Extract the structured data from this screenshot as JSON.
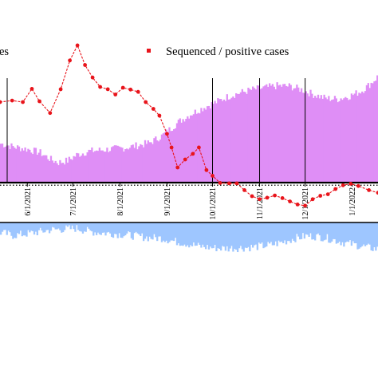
{
  "chart_data": {
    "type": "bar",
    "x_axis": {
      "tick_labels": [
        "6/1/2021",
        "7/1/2021",
        "8/1/2021",
        "9/1/2021",
        "10/1/2021",
        "11/1/2021",
        "12/1/2021",
        "1/1/2022"
      ],
      "tick_days": [
        0,
        30,
        61,
        92,
        122,
        153,
        183,
        214
      ],
      "range_days": [
        -18,
        231
      ]
    },
    "legend": [
      {
        "label": "es",
        "partial": true
      },
      {
        "label": "Sequenced / positive cases",
        "marker": "red-square-dot"
      }
    ],
    "series": [
      {
        "name": "Sequenced / positive cases",
        "kind": "line-with-markers",
        "color": "#e8141b",
        "points": [
          [
            -18,
            0.73
          ],
          [
            -10,
            0.734
          ],
          [
            -3,
            0.73
          ],
          [
            3,
            0.765
          ],
          [
            8,
            0.732
          ],
          [
            15,
            0.701
          ],
          [
            22,
            0.764
          ],
          [
            28,
            0.84
          ],
          [
            33,
            0.88
          ],
          [
            38,
            0.828
          ],
          [
            43,
            0.795
          ],
          [
            48,
            0.77
          ],
          [
            53,
            0.764
          ],
          [
            58,
            0.75
          ],
          [
            63,
            0.768
          ],
          [
            68,
            0.763
          ],
          [
            73,
            0.757
          ],
          [
            78,
            0.73
          ],
          [
            83,
            0.712
          ],
          [
            87,
            0.694
          ],
          [
            92,
            0.646
          ],
          [
            95,
            0.61
          ],
          [
            99,
            0.557
          ],
          [
            104,
            0.578
          ],
          [
            109,
            0.593
          ],
          [
            113,
            0.61
          ],
          [
            118,
            0.55
          ],
          [
            122,
            0.535
          ],
          [
            127,
            0.516
          ],
          [
            133,
            0.515
          ],
          [
            138,
            0.515
          ],
          [
            143,
            0.497
          ],
          [
            148,
            0.481
          ],
          [
            153,
            0.473
          ],
          [
            158,
            0.477
          ],
          [
            163,
            0.483
          ],
          [
            168,
            0.476
          ],
          [
            173,
            0.467
          ],
          [
            178,
            0.459
          ],
          [
            183,
            0.456
          ],
          [
            188,
            0.473
          ],
          [
            193,
            0.482
          ],
          [
            198,
            0.486
          ],
          [
            203,
            0.5
          ],
          [
            208,
            0.51
          ],
          [
            213,
            0.514
          ],
          [
            218,
            0.508
          ],
          [
            225,
            0.497
          ],
          [
            231,
            0.49
          ]
        ]
      },
      {
        "name": "",
        "kind": "bars-up",
        "color": "#df8ef6",
        "baseline": 0.45,
        "points": [
          [
            -18,
            0.62
          ],
          [
            -10,
            0.612
          ],
          [
            0,
            0.605
          ],
          [
            8,
            0.596
          ],
          [
            15,
            0.578
          ],
          [
            20,
            0.57
          ],
          [
            26,
            0.575
          ],
          [
            32,
            0.59
          ],
          [
            40,
            0.6
          ],
          [
            48,
            0.603
          ],
          [
            56,
            0.606
          ],
          [
            64,
            0.609
          ],
          [
            72,
            0.615
          ],
          [
            80,
            0.622
          ],
          [
            88,
            0.64
          ],
          [
            94,
            0.66
          ],
          [
            100,
            0.68
          ],
          [
            108,
            0.7
          ],
          [
            116,
            0.716
          ],
          [
            124,
            0.73
          ],
          [
            132,
            0.745
          ],
          [
            140,
            0.755
          ],
          [
            148,
            0.763
          ],
          [
            156,
            0.768
          ],
          [
            164,
            0.773
          ],
          [
            172,
            0.772
          ],
          [
            180,
            0.763
          ],
          [
            188,
            0.75
          ],
          [
            196,
            0.74
          ],
          [
            204,
            0.738
          ],
          [
            212,
            0.746
          ],
          [
            220,
            0.76
          ],
          [
            226,
            0.78
          ],
          [
            231,
            0.8
          ]
        ]
      },
      {
        "name": "",
        "kind": "bars-down",
        "color": "#9ec6ff",
        "baseline": 0.45,
        "points": [
          [
            -18,
            0.385
          ],
          [
            -10,
            0.377
          ],
          [
            0,
            0.382
          ],
          [
            8,
            0.387
          ],
          [
            15,
            0.392
          ],
          [
            24,
            0.394
          ],
          [
            32,
            0.396
          ],
          [
            40,
            0.388
          ],
          [
            48,
            0.384
          ],
          [
            56,
            0.382
          ],
          [
            64,
            0.379
          ],
          [
            72,
            0.375
          ],
          [
            80,
            0.371
          ],
          [
            88,
            0.37
          ],
          [
            96,
            0.362
          ],
          [
            104,
            0.356
          ],
          [
            112,
            0.349
          ],
          [
            120,
            0.345
          ],
          [
            128,
            0.343
          ],
          [
            136,
            0.344
          ],
          [
            144,
            0.345
          ],
          [
            152,
            0.348
          ],
          [
            160,
            0.352
          ],
          [
            168,
            0.36
          ],
          [
            176,
            0.37
          ],
          [
            184,
            0.376
          ],
          [
            192,
            0.374
          ],
          [
            200,
            0.367
          ],
          [
            208,
            0.358
          ],
          [
            216,
            0.352
          ],
          [
            224,
            0.345
          ],
          [
            231,
            0.34
          ]
        ]
      }
    ],
    "reference_line": {
      "style": "dotted",
      "value": 0.51
    },
    "event_lines_days": [
      -18,
      122,
      153,
      183
    ],
    "grid": false
  }
}
